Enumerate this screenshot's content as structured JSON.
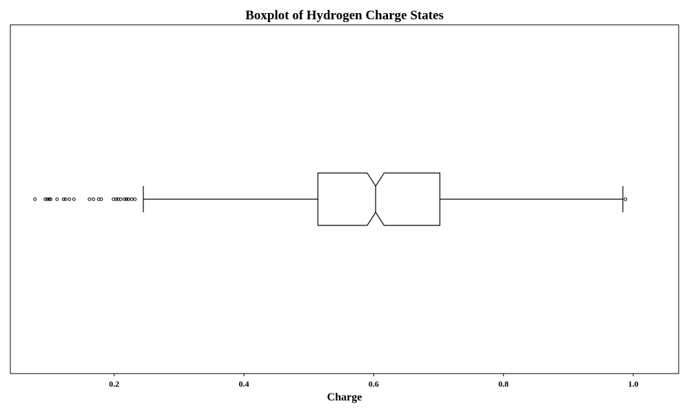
{
  "chart_data": {
    "type": "boxplot",
    "orientation": "horizontal",
    "notched": true,
    "title": "Boxplot of Hydrogen Charge States",
    "xlabel": "Charge",
    "ylabel": "",
    "xlim": [
      0.04,
      1.07
    ],
    "xticks": [
      0.2,
      0.4,
      0.6,
      0.8,
      1.0
    ],
    "xtick_labels": [
      "0.2",
      "0.4",
      "0.6",
      "0.8",
      "1.0"
    ],
    "grid": false,
    "box": {
      "q1": 0.514,
      "median": 0.603,
      "q3": 0.702,
      "whisker_low": 0.245,
      "whisker_high": 0.984,
      "notch_low": 0.59,
      "notch_high": 0.616
    },
    "outliers": [
      0.078,
      0.094,
      0.097,
      0.1,
      0.102,
      0.112,
      0.122,
      0.125,
      0.131,
      0.138,
      0.162,
      0.168,
      0.176,
      0.18,
      0.199,
      0.203,
      0.206,
      0.21,
      0.216,
      0.219,
      0.222,
      0.227,
      0.232,
      0.988
    ]
  }
}
